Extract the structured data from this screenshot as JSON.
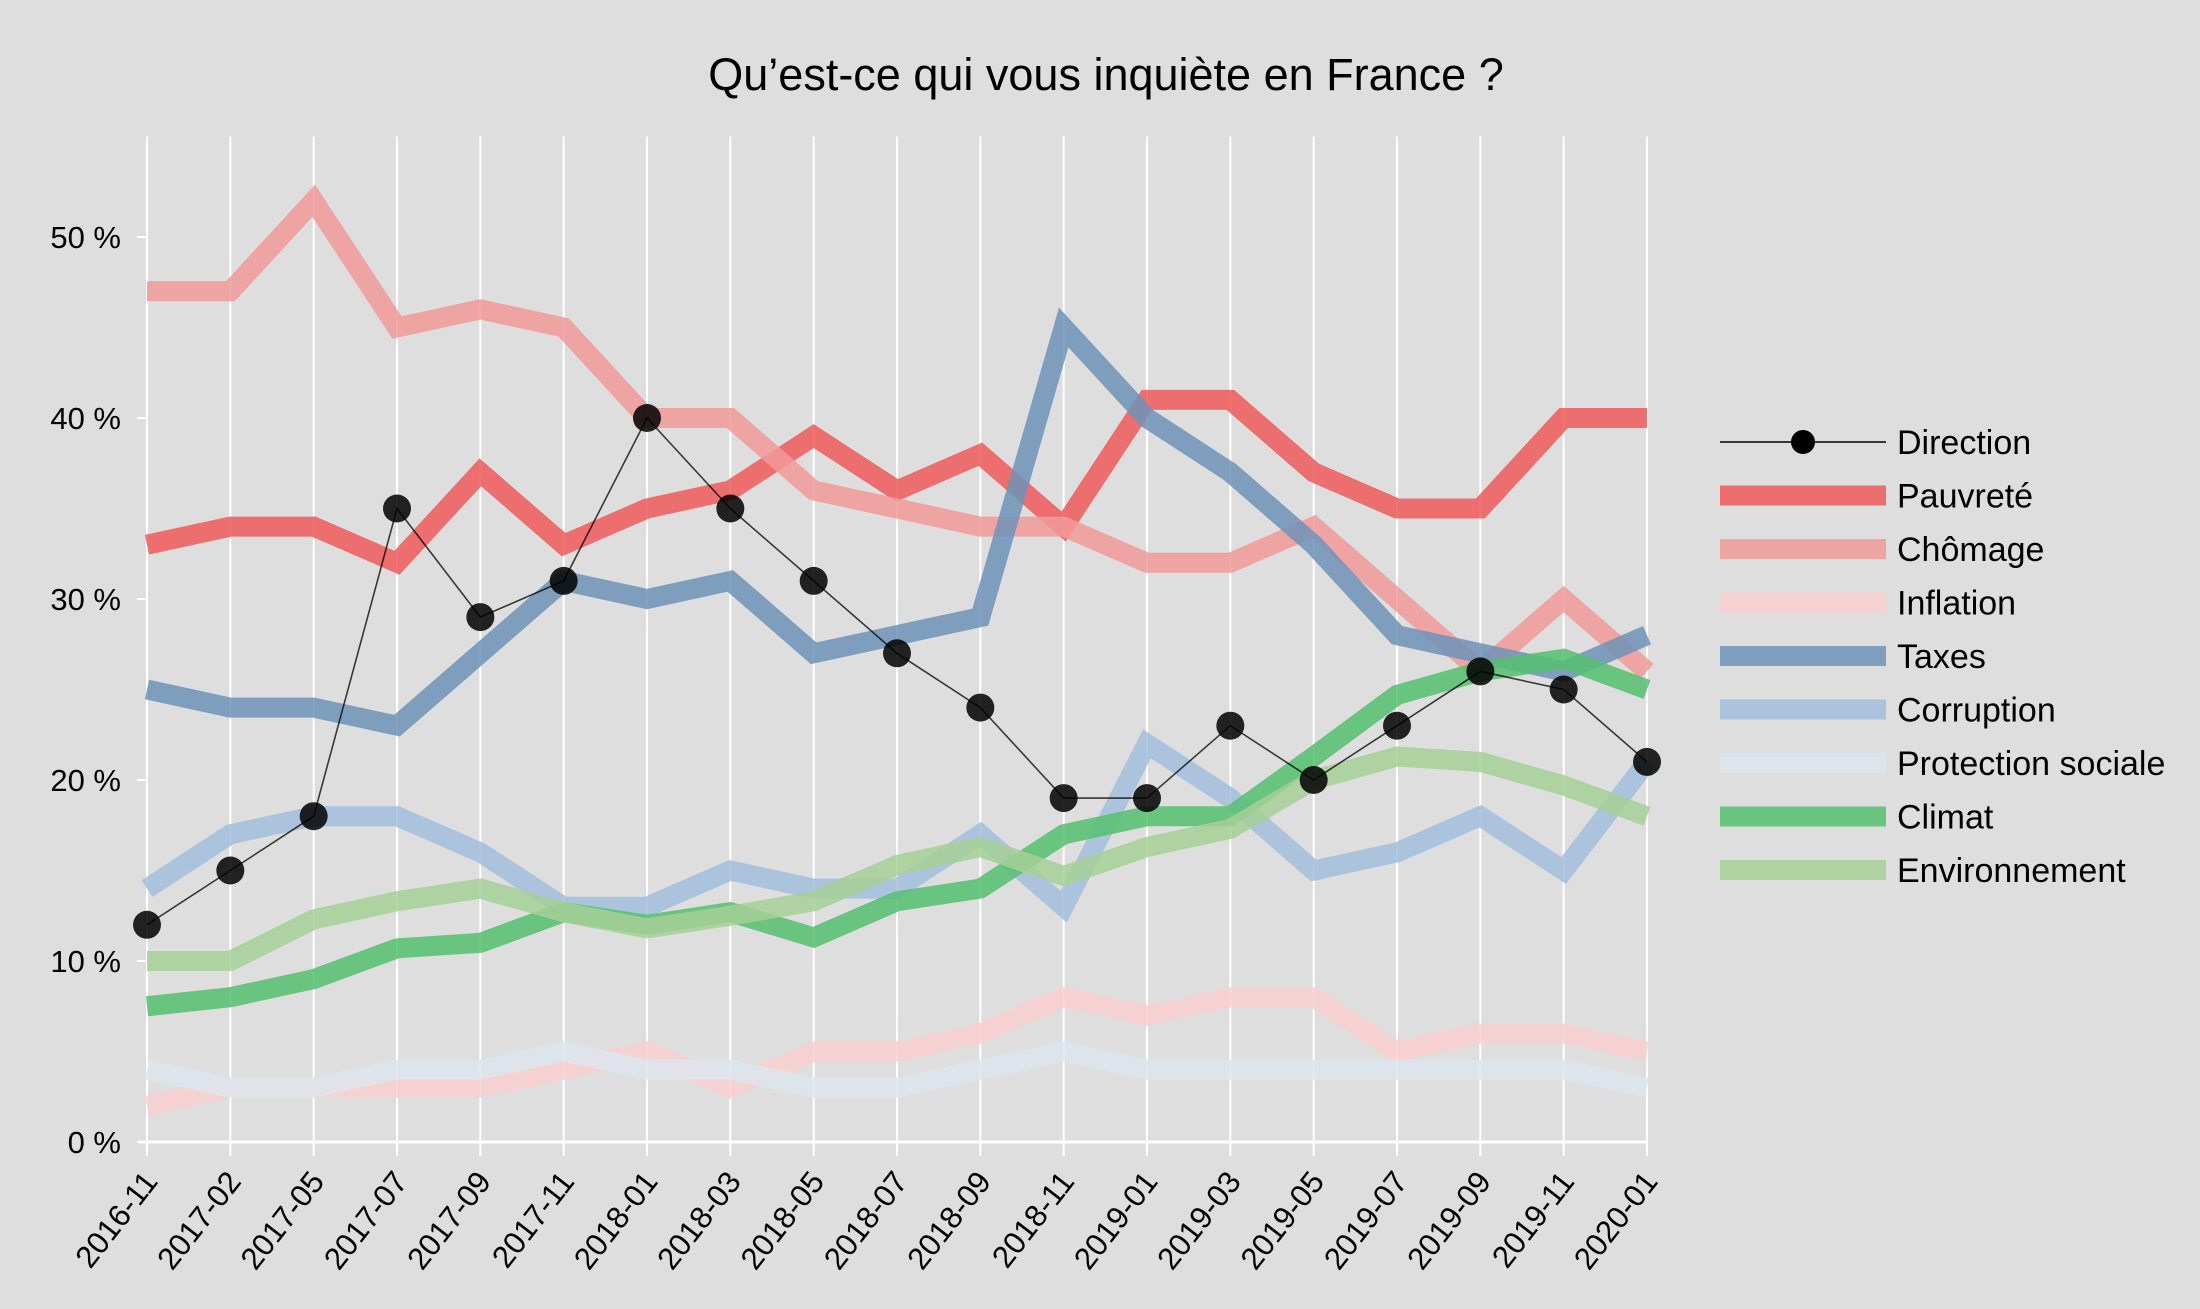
{
  "chart_data": {
    "type": "line",
    "title": "Qu’est-ce qui vous inquiète en France ?",
    "xlabel": "",
    "ylabel": "",
    "ylim": [
      0,
      55
    ],
    "yticks": [
      0,
      10,
      20,
      30,
      40,
      50
    ],
    "ytick_labels": [
      "0 %",
      "10 %",
      "20 %",
      "30 %",
      "40 %",
      "50 %"
    ],
    "grid": "vertical",
    "legend_position": "right",
    "categories": [
      "2016-11",
      "2017-02",
      "2017-05",
      "2017-07",
      "2017-09",
      "2017-11",
      "2018-01",
      "2018-03",
      "2018-05",
      "2018-07",
      "2018-09",
      "2018-11",
      "2019-01",
      "2019-03",
      "2019-05",
      "2019-07",
      "2019-09",
      "2019-11",
      "2020-01"
    ],
    "series": [
      {
        "name": "Pauvreté",
        "color": "#ee5a5a",
        "style": "thick",
        "values": [
          33,
          34,
          34,
          32,
          37,
          33,
          35,
          36,
          39,
          36,
          38,
          34,
          41,
          41,
          37,
          35,
          35,
          40,
          40
        ]
      },
      {
        "name": "Chômage",
        "color": "#f29a9a",
        "style": "thick",
        "values": [
          47,
          47,
          52,
          45,
          46,
          45,
          40,
          40,
          36,
          35,
          34,
          34,
          32,
          32,
          34,
          30,
          26,
          30,
          26
        ]
      },
      {
        "name": "Inflation",
        "color": "#f9cfcf",
        "style": "thick",
        "values": [
          2,
          3,
          3,
          3,
          3,
          4,
          5,
          3,
          5,
          5,
          6,
          8,
          7,
          8,
          8,
          5,
          6,
          6,
          5
        ]
      },
      {
        "name": "Taxes",
        "color": "#6f93b8",
        "style": "thick",
        "values": [
          25,
          24,
          24,
          23,
          27,
          31,
          30,
          31,
          27,
          28,
          29,
          45,
          40,
          37,
          33,
          28,
          27,
          26,
          28
        ]
      },
      {
        "name": "Corruption",
        "color": "#a3bedd",
        "style": "thick",
        "values": [
          14,
          17,
          18,
          18,
          16,
          13,
          13,
          15,
          14,
          14,
          17,
          13,
          22,
          19,
          15,
          16,
          18,
          15,
          21
        ]
      },
      {
        "name": "Protection sociale",
        "color": "#dde5ee",
        "style": "thick",
        "values": [
          4,
          3,
          3,
          4,
          4,
          5,
          4,
          4,
          3,
          3,
          4,
          5,
          4,
          4,
          4,
          4,
          4,
          4,
          3
        ]
      },
      {
        "name": "Climat",
        "color": "#55c070",
        "style": "thick",
        "values": [
          7.5,
          8,
          9,
          10.7,
          11,
          12.7,
          12,
          12.7,
          11.3,
          13.3,
          14,
          17,
          18,
          18,
          21.3,
          24.7,
          26,
          26.7,
          25
        ]
      },
      {
        "name": "Environnement",
        "color": "#a6d097",
        "style": "thick",
        "values": [
          10,
          10,
          12.3,
          13.3,
          14,
          12.7,
          11.8,
          12.5,
          13.3,
          15.3,
          16.3,
          14.7,
          16.3,
          17.3,
          20,
          21.3,
          21,
          19.7,
          18
        ]
      },
      {
        "name": "Direction",
        "color": "#000000",
        "style": "marker",
        "values": [
          12,
          15,
          18,
          35,
          29,
          31,
          40,
          35,
          31,
          27,
          24,
          19,
          19,
          23,
          20,
          23,
          26,
          25,
          21
        ]
      }
    ],
    "legend_order": [
      "Direction",
      "Pauvreté",
      "Chômage",
      "Inflation",
      "Taxes",
      "Corruption",
      "Protection sociale",
      "Climat",
      "Environnement"
    ]
  }
}
